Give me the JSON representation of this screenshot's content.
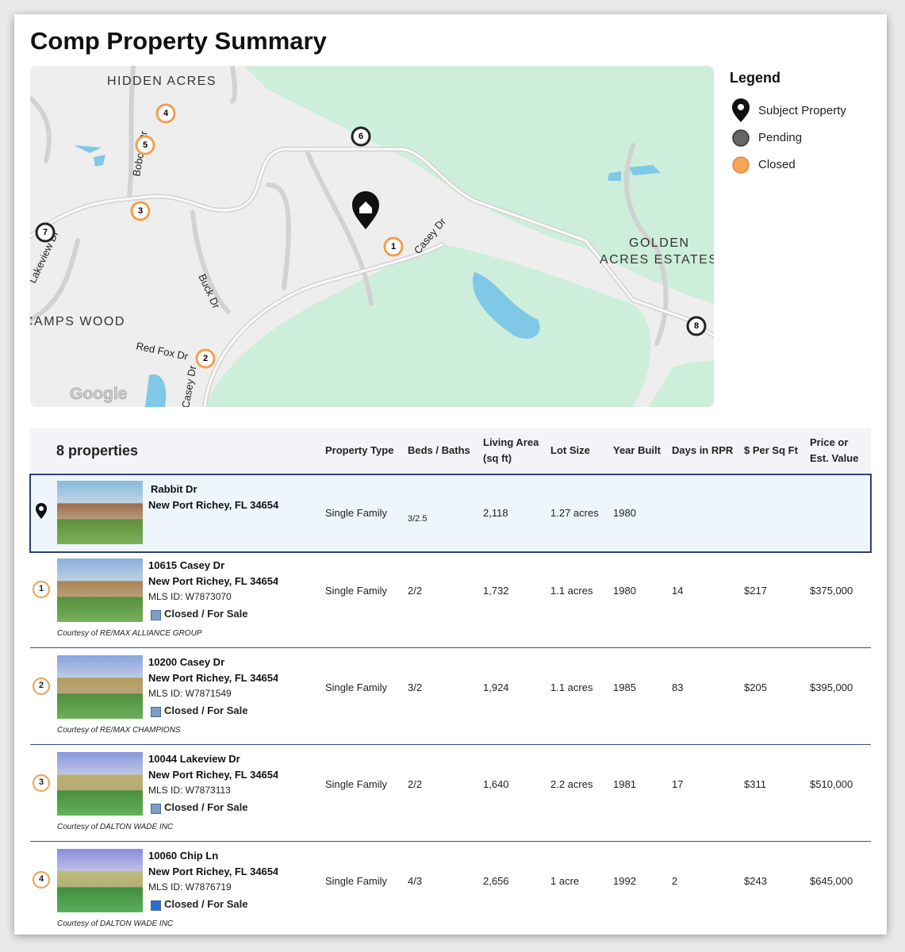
{
  "title": "Comp Property Summary",
  "map": {
    "areas": [
      "HIDDEN ACRES",
      "GOLDEN",
      "ACRES ESTATES",
      "CAMPS WOOD"
    ],
    "streets": [
      "Bobcat Dr",
      "Lakeview Dr",
      "Buck Dr",
      "Red Fox Dr",
      "Casey Dr",
      "Casey Dr"
    ],
    "markers": [
      "1",
      "2",
      "3",
      "4",
      "5",
      "6",
      "7",
      "8"
    ],
    "attribution": "Google"
  },
  "legend": {
    "title": "Legend",
    "items": [
      "Subject Property",
      "Pending",
      "Closed"
    ]
  },
  "table": {
    "count": "8 properties",
    "columns": [
      "Property Type",
      "Beds / Baths",
      "Living Area (sq ft)",
      "Lot Size",
      "Year Built",
      "Days in RPR",
      "$ Per Sq Ft",
      "Price or Est. Value"
    ],
    "subject": {
      "street": "Rabbit Dr",
      "city": "New Port Richey, FL 34654",
      "cells": [
        "Single Family",
        "3/2.5",
        "2,118",
        "1.27 acres",
        "1980"
      ]
    },
    "rows": [
      {
        "marker": "1",
        "street": "10615 Casey Dr",
        "city": "New Port Richey, FL 34654",
        "mls": "MLS ID: W7873070",
        "status": "Closed / For Sale",
        "courtesy": "Courtesy of RE/MAX ALLIANCE GROUP",
        "cells": [
          "Single Family",
          "2/2",
          "1,732",
          "1.1 acres",
          "1980",
          "14",
          "$217",
          "$375,000"
        ]
      },
      {
        "marker": "2",
        "street": "10200 Casey Dr",
        "city": "New Port Richey, FL 34654",
        "mls": "MLS ID: W7871549",
        "status": "Closed / For Sale",
        "courtesy": "Courtesy of RE/MAX CHAMPIONS",
        "cells": [
          "Single Family",
          "3/2",
          "1,924",
          "1.1 acres",
          "1985",
          "83",
          "$205",
          "$395,000"
        ]
      },
      {
        "marker": "3",
        "street": "10044 Lakeview Dr",
        "city": "New Port Richey, FL 34654",
        "mls": "MLS ID: W7873113",
        "status": "Closed / For Sale",
        "courtesy": "Courtesy of DALTON WADE INC",
        "cells": [
          "Single Family",
          "2/2",
          "1,640",
          "2.2 acres",
          "1981",
          "17",
          "$311",
          "$510,000"
        ]
      },
      {
        "marker": "4",
        "street": "10060 Chip Ln",
        "city": "New Port Richey, FL 34654",
        "mls": "MLS ID: W7876719",
        "status": "Closed / For Sale",
        "courtesy": "Courtesy of DALTON WADE INC",
        "cells": [
          "Single Family",
          "4/3",
          "2,656",
          "1 acre",
          "1992",
          "2",
          "$243",
          "$645,000"
        ]
      }
    ]
  }
}
